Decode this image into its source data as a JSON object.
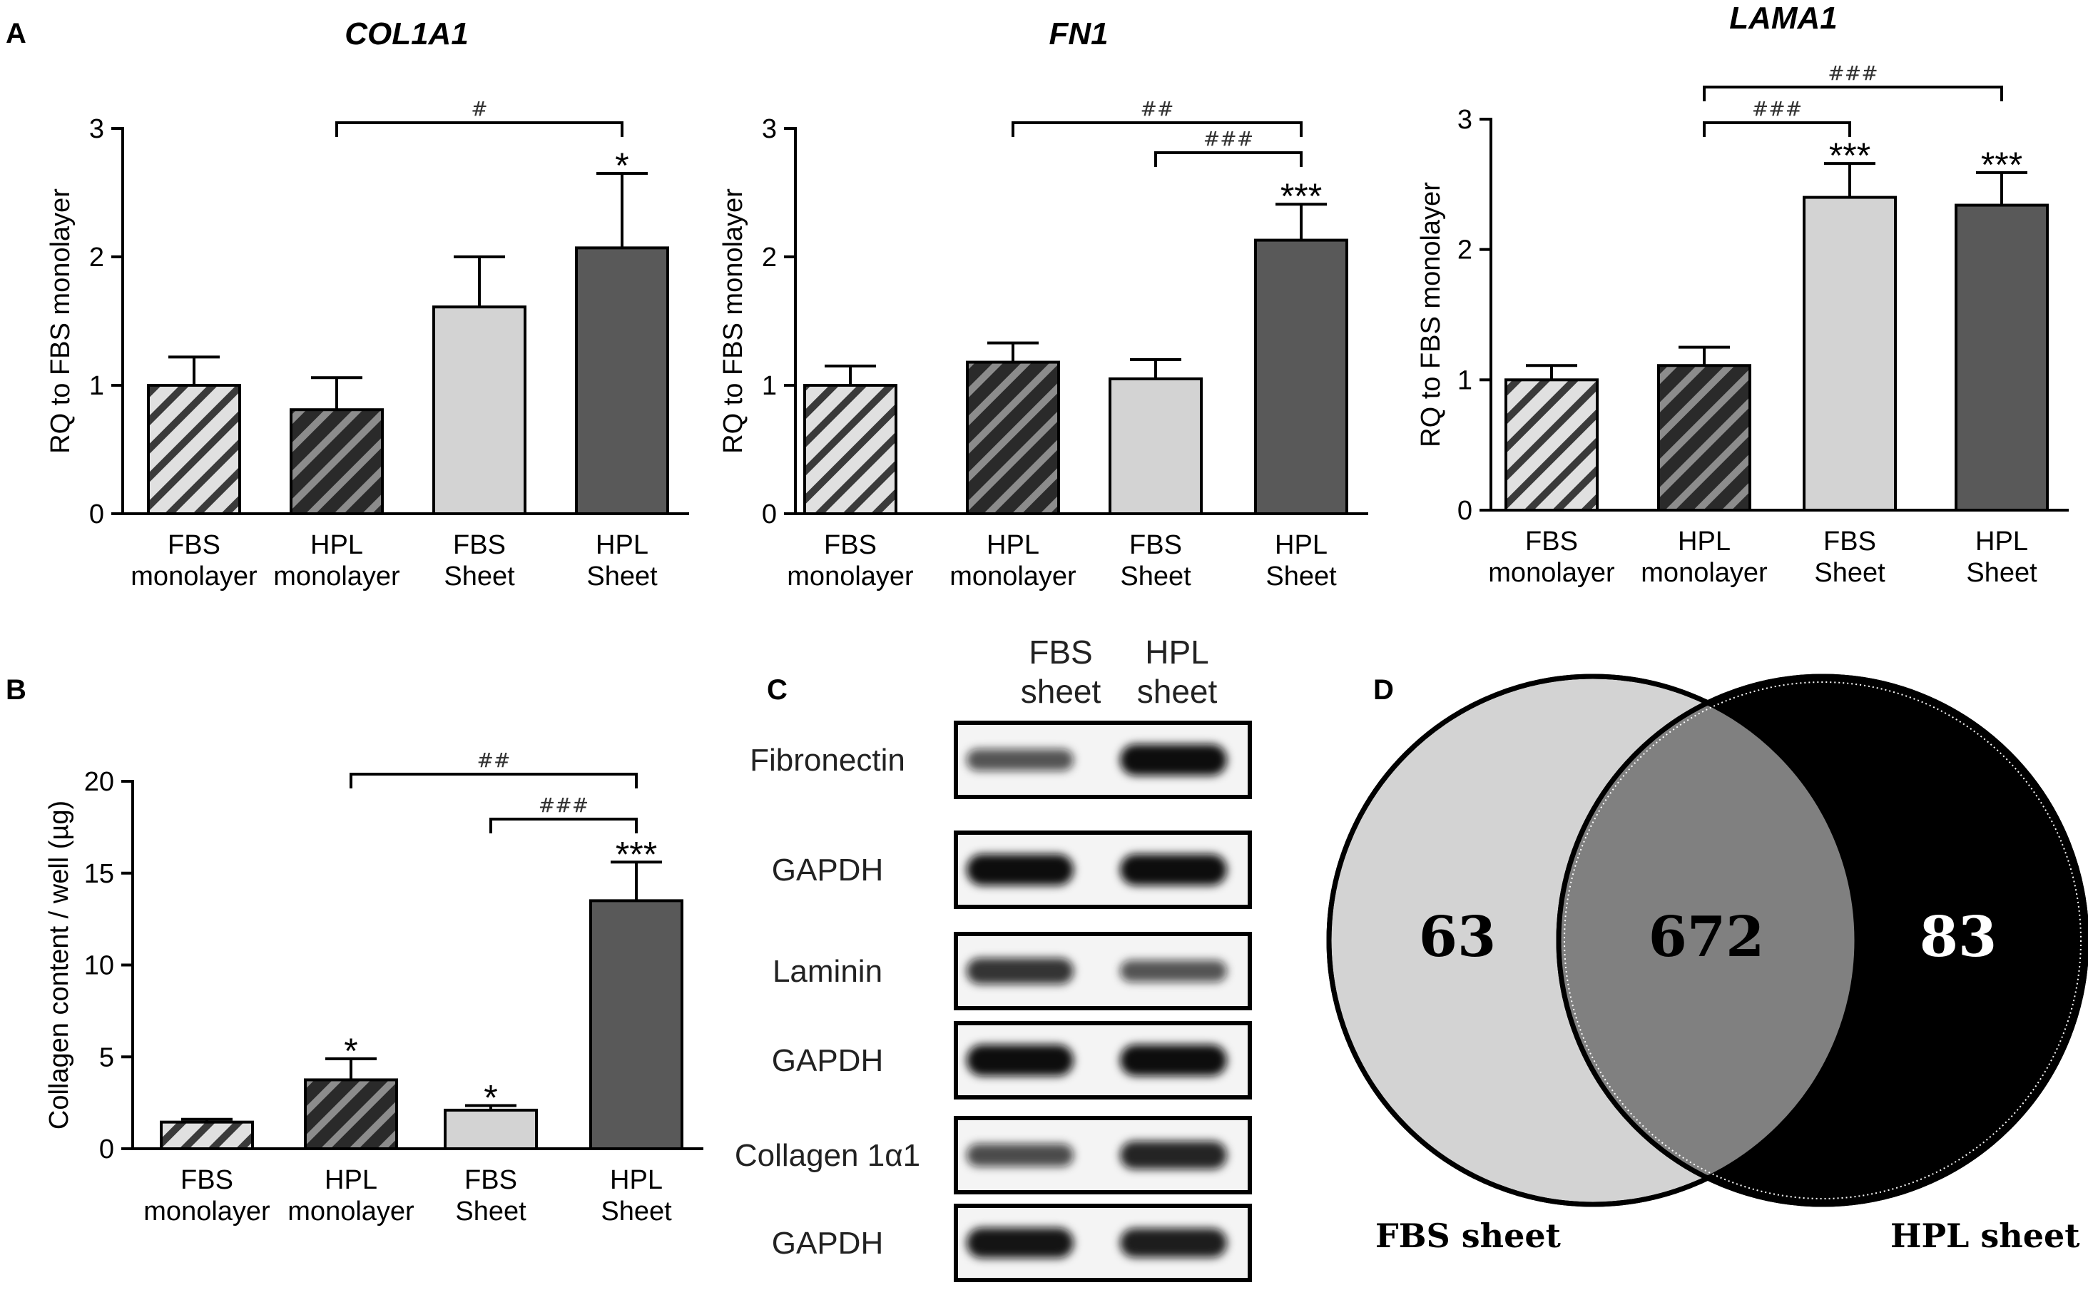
{
  "panels": {
    "A": {
      "label": "A",
      "charts": [
        {
          "title": "COL1A1",
          "ylabel": "RQ to FBS monolayer"
        },
        {
          "title": "FN1",
          "ylabel": "RQ to FBS monolayer"
        },
        {
          "title": "LAMA1",
          "ylabel": "RQ to FBS monolayer"
        }
      ]
    },
    "B": {
      "label": "B",
      "ylabel": "Collagen content / well (µg)"
    },
    "C": {
      "label": "C",
      "lane_headers": [
        "FBS\nsheet",
        "HPL\nsheet"
      ],
      "rows": [
        {
          "label": "Fibronectin",
          "intensity": [
            0.55,
            1.0
          ]
        },
        {
          "label": "GAPDH",
          "intensity": [
            1.0,
            1.0
          ]
        },
        {
          "label": "Laminin",
          "intensity": [
            0.75,
            0.55
          ]
        },
        {
          "label": "GAPDH",
          "intensity": [
            1.0,
            1.0
          ]
        },
        {
          "label": "Collagen 1α1",
          "intensity": [
            0.6,
            0.85
          ]
        },
        {
          "label": "GAPDH",
          "intensity": [
            0.95,
            0.9
          ]
        }
      ]
    },
    "D": {
      "label": "D",
      "venn": {
        "sets": [
          {
            "name": "FBS sheet",
            "only": "63",
            "color": "#d3d3d3"
          },
          {
            "name": "HPL sheet",
            "only": "83",
            "color": "#000000"
          }
        ],
        "overlap": "672",
        "overlap_color": "#808080"
      }
    }
  },
  "style": {
    "fbs_monolayer": {
      "fill": "#e0e0e0",
      "pattern": "hatch-light"
    },
    "hpl_monolayer": {
      "fill": "#4a4a4a",
      "pattern": "hatch-dark"
    },
    "fbs_sheet": "#d3d3d3",
    "hpl_sheet": "#595959"
  },
  "chart_data": [
    {
      "type": "bar",
      "title": "COL1A1",
      "ylabel": "RQ to FBS monolayer",
      "categories": [
        "FBS\nmonolayer",
        "HPL\nmonolayer",
        "FBS\nSheet",
        "HPL\nSheet"
      ],
      "values": [
        1.0,
        0.81,
        1.61,
        2.07
      ],
      "errors": [
        0.22,
        0.25,
        0.39,
        0.58
      ],
      "ylim": [
        0,
        3
      ],
      "yticks": [
        0,
        1,
        2,
        3
      ],
      "stars": [
        "",
        "",
        "",
        "*"
      ],
      "brackets": [
        {
          "from": 1,
          "to": 3,
          "label": "#"
        }
      ]
    },
    {
      "type": "bar",
      "title": "FN1",
      "ylabel": "RQ to FBS monolayer",
      "categories": [
        "FBS\nmonolayer",
        "HPL\nmonolayer",
        "FBS\nSheet",
        "HPL\nSheet"
      ],
      "values": [
        1.0,
        1.18,
        1.05,
        2.13
      ],
      "errors": [
        0.15,
        0.15,
        0.15,
        0.28
      ],
      "ylim": [
        0,
        3
      ],
      "yticks": [
        0,
        1,
        2,
        3
      ],
      "stars": [
        "",
        "",
        "",
        "***"
      ],
      "brackets": [
        {
          "from": 1,
          "to": 3,
          "label": "##"
        },
        {
          "from": 2,
          "to": 3,
          "label": "###"
        }
      ]
    },
    {
      "type": "bar",
      "title": "LAMA1",
      "ylabel": "RQ to FBS monolayer",
      "categories": [
        "FBS\nmonolayer",
        "HPL\nmonolayer",
        "FBS\nSheet",
        "HPL\nSheet"
      ],
      "values": [
        1.0,
        1.11,
        2.4,
        2.34
      ],
      "errors": [
        0.11,
        0.14,
        0.26,
        0.25
      ],
      "ylim": [
        0,
        3
      ],
      "yticks": [
        0,
        1,
        2,
        3
      ],
      "stars": [
        "",
        "",
        "***",
        "***"
      ],
      "brackets": [
        {
          "from": 1,
          "to": 3,
          "label": "###"
        },
        {
          "from": 1,
          "to": 2,
          "label": "###"
        }
      ]
    },
    {
      "type": "bar",
      "title": "",
      "ylabel": "Collagen content / well (µg)",
      "categories": [
        "FBS\nmonolayer",
        "HPL\nmonolayer",
        "FBS\nSheet",
        "HPL\nSheet"
      ],
      "values": [
        1.45,
        3.75,
        2.1,
        13.5
      ],
      "errors": [
        0.15,
        1.15,
        0.25,
        2.1
      ],
      "ylim": [
        0,
        20
      ],
      "yticks": [
        0,
        5,
        10,
        15,
        20
      ],
      "stars": [
        "",
        "*",
        "*",
        "***"
      ],
      "brackets": [
        {
          "from": 1,
          "to": 3,
          "label": "##"
        },
        {
          "from": 2,
          "to": 3,
          "label": "###"
        }
      ]
    }
  ]
}
